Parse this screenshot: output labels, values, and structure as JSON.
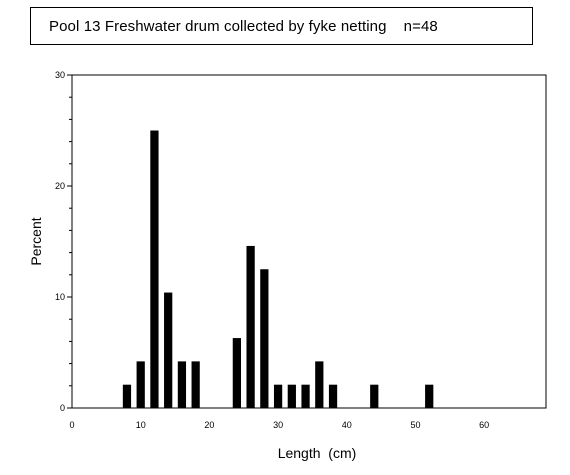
{
  "title": "Pool 13 Freshwater drum collected by fyke netting    n=48",
  "chart_data": {
    "type": "bar",
    "title": "Pool 13 Freshwater drum collected by fyke netting    n=48",
    "xlabel": "Length  (cm)",
    "ylabel": "Percent",
    "xlim": [
      0,
      69
    ],
    "ylim": [
      0,
      30
    ],
    "x_ticks": [
      0,
      10,
      20,
      30,
      40,
      50,
      60
    ],
    "y_ticks": [
      0,
      10,
      20,
      30
    ],
    "y_minor_step": 2,
    "bar_width": 1.2,
    "grid": false,
    "bar_color": "#000000",
    "x": [
      8,
      10,
      12,
      14,
      16,
      18,
      24,
      26,
      28,
      30,
      32,
      34,
      36,
      38,
      44,
      52
    ],
    "values": [
      2.1,
      4.2,
      25.0,
      10.4,
      4.2,
      4.2,
      6.3,
      14.6,
      12.5,
      2.1,
      2.1,
      2.1,
      4.2,
      2.1,
      2.1,
      2.1
    ]
  }
}
